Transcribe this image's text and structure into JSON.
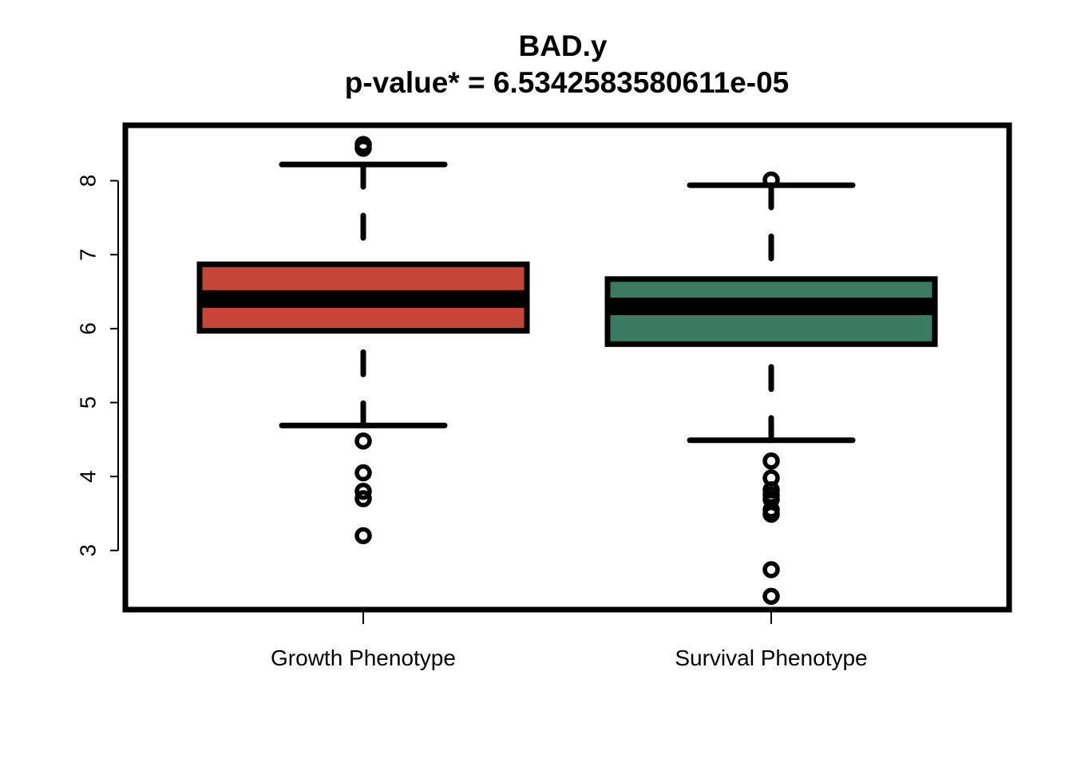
{
  "chart_data": {
    "type": "box",
    "title": "BAD.y",
    "subtitle": "p-value* = 6.5342583580611e-05",
    "xlabel": "",
    "ylabel": "",
    "categories": [
      "Growth Phenotype",
      "Survival Phenotype"
    ],
    "yticks": [
      "3",
      "4",
      "5",
      "6",
      "7",
      "8"
    ],
    "ylim": [
      2.2,
      8.75
    ],
    "grid": false,
    "legend": "none",
    "boxes": [
      {
        "category": "Growth Phenotype",
        "color": "#c44536",
        "whisker_low": 4.69,
        "q1": 5.97,
        "median": 6.4,
        "q3": 6.87,
        "whisker_high": 8.22,
        "outliers": [
          8.49,
          8.44,
          4.48,
          4.05,
          3.8,
          3.7,
          3.2
        ]
      },
      {
        "category": "Survival Phenotype",
        "color": "#3a7a62",
        "whisker_low": 4.49,
        "q1": 5.79,
        "median": 6.3,
        "q3": 6.67,
        "whisker_high": 7.94,
        "outliers": [
          8.01,
          4.21,
          3.98,
          3.82,
          3.75,
          3.69,
          3.55,
          3.49,
          2.74,
          2.38
        ]
      }
    ]
  }
}
